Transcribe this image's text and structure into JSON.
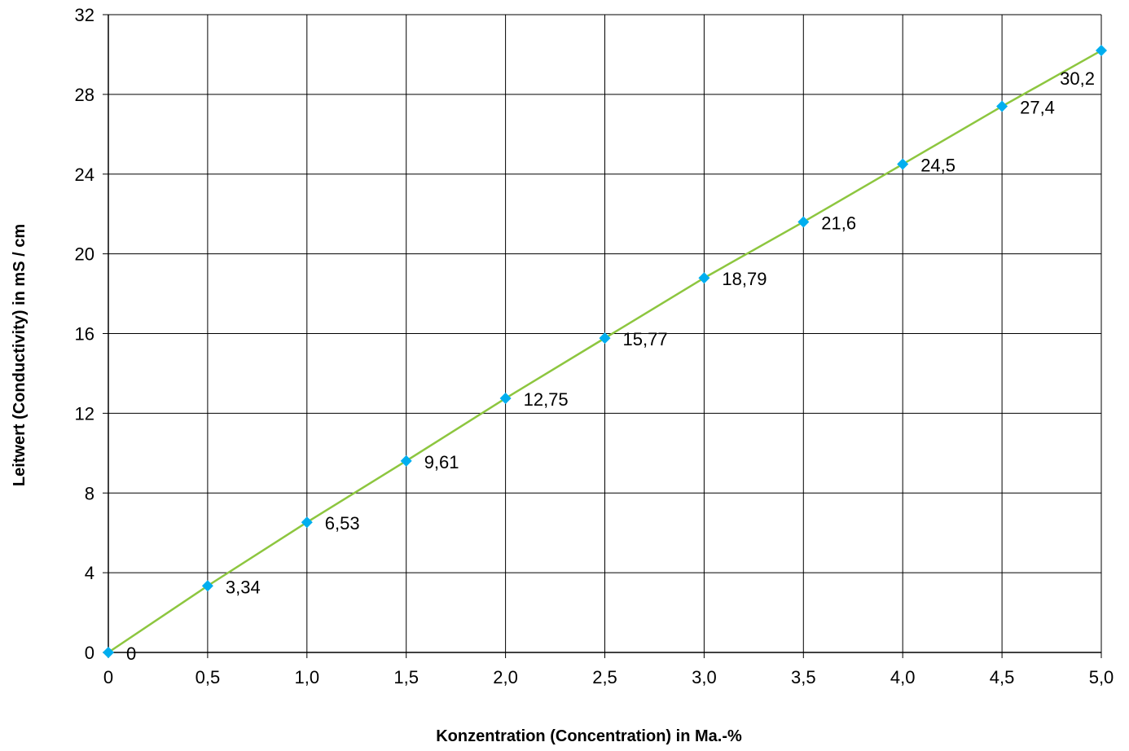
{
  "chart_data": {
    "type": "line",
    "title": "",
    "xlabel": "Konzentration (Concentration) in Ma.-%",
    "ylabel": "Leitwert (Conductivity) in mS / cm",
    "x_tick_labels": [
      "0",
      "0,5",
      "1,0",
      "1,5",
      "2,0",
      "2,5",
      "3,0",
      "3,5",
      "4,0",
      "4,5",
      "5,0"
    ],
    "x_ticks": [
      0,
      0.5,
      1.0,
      1.5,
      2.0,
      2.5,
      3.0,
      3.5,
      4.0,
      4.5,
      5.0
    ],
    "y_tick_labels": [
      "0",
      "4",
      "8",
      "12",
      "16",
      "20",
      "24",
      "28",
      "32"
    ],
    "y_ticks": [
      0,
      4,
      8,
      12,
      16,
      20,
      24,
      28,
      32
    ],
    "xlim": [
      0,
      5
    ],
    "ylim": [
      0,
      32
    ],
    "grid": true,
    "legend": "none",
    "series": [
      {
        "x": [
          0,
          0.5,
          1.0,
          1.5,
          2.0,
          2.5,
          3.0,
          3.5,
          4.0,
          4.5,
          5.0
        ],
        "values": [
          0,
          3.34,
          6.53,
          9.61,
          12.75,
          15.77,
          18.79,
          21.6,
          24.5,
          27.4,
          30.2
        ],
        "labels": [
          "0",
          "3,34",
          "6,53",
          "9,61",
          "12,75",
          "15,77",
          "18,79",
          "21,6",
          "24,5",
          "27,4",
          "30,2"
        ],
        "line_color": "#8dc63f",
        "marker_color": "#00aeef",
        "marker": "diamond"
      }
    ]
  }
}
